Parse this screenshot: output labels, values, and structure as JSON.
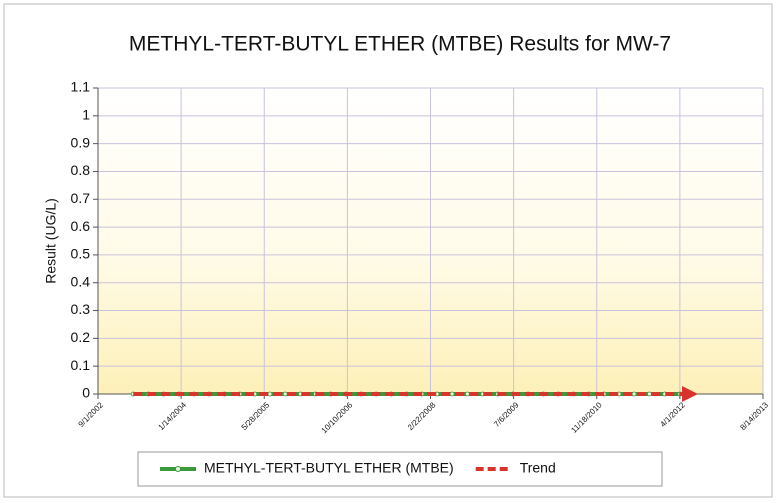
{
  "chart_data": {
    "type": "line",
    "title": "METHYL-TERT-BUTYL ETHER (MTBE) Results for MW-7",
    "ylabel": "Result (UG/L)",
    "xlim": [
      "9/1/2002",
      "8/14/2013"
    ],
    "xticks": [
      "9/1/2002",
      "1/14/2004",
      "5/28/2005",
      "10/10/2006",
      "2/22/2008",
      "7/6/2009",
      "11/18/2010",
      "4/1/2012",
      "8/14/2013"
    ],
    "ylim": [
      0,
      1.1
    ],
    "yticks": [
      0,
      0.1,
      0.2,
      0.3,
      0.4,
      0.5,
      0.6,
      0.7,
      0.8,
      0.9,
      1,
      1.1
    ],
    "grid": true,
    "legend": "bottom",
    "series": [
      {
        "name": "METHYL-TERT-BUTYL ETHER (MTBE)",
        "color": "#3a9a3a",
        "x": [
          "4/1/2003",
          "7/1/2003",
          "10/1/2003",
          "1/1/2004",
          "4/1/2004",
          "7/1/2004",
          "10/1/2004",
          "1/1/2005",
          "4/1/2005",
          "7/1/2005",
          "10/1/2005",
          "1/1/2006",
          "4/1/2006",
          "7/1/2006",
          "10/1/2006",
          "1/1/2007",
          "4/1/2007",
          "7/1/2007",
          "10/1/2007",
          "1/1/2008",
          "4/1/2008",
          "7/1/2008",
          "10/1/2008",
          "1/1/2009",
          "4/1/2009",
          "7/1/2009",
          "10/1/2009",
          "1/1/2010",
          "4/1/2010",
          "7/1/2010",
          "10/1/2010",
          "1/1/2011",
          "4/1/2011",
          "7/1/2011",
          "10/1/2011",
          "1/1/2012",
          "4/1/2012"
        ],
        "values": [
          0,
          0,
          0,
          0,
          0,
          0,
          0,
          0,
          0,
          0,
          0,
          0,
          0,
          0,
          0,
          0,
          0,
          0,
          0,
          0,
          0,
          0,
          0,
          0,
          0,
          0,
          0,
          0,
          0,
          0,
          0,
          0,
          0,
          0,
          0,
          0,
          0
        ]
      },
      {
        "name": "Trend",
        "color": "#d9342b",
        "dashed": true,
        "x": [
          "4/1/2003",
          "6/1/2012"
        ],
        "values": [
          0,
          0
        ]
      }
    ]
  }
}
